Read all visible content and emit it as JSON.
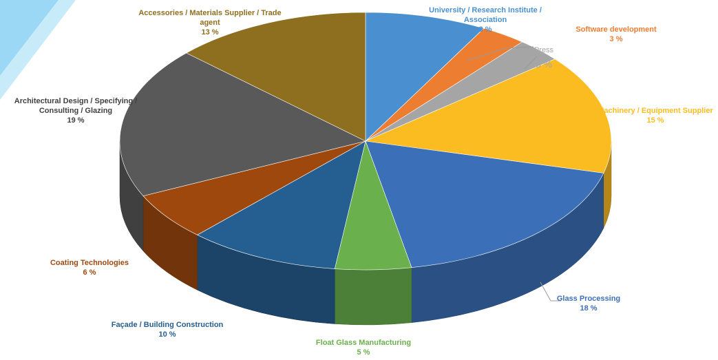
{
  "chart_data": {
    "type": "pie",
    "categories": [
      "University / Research Institute / Association",
      "Software development",
      "Press",
      "Machinery / Equipment Supplier",
      "Glass Processing",
      "Float Glass Manufacturing",
      "Façade / Building Construction",
      "Coating Technologies",
      "Architectural Design / Specifying / Consulting / Glazing",
      "Accessories / Materials Supplier / Trade agent"
    ],
    "values": [
      8,
      3,
      3,
      15,
      18,
      5,
      10,
      6,
      19,
      13
    ],
    "value_labels": [
      "8 %",
      "3 %",
      "3 %",
      "15 %",
      "18 %",
      "5 %",
      "10 %",
      "6 %",
      "19 %",
      "13 %"
    ],
    "colors": [
      "#4a90d0",
      "#ed7d31",
      "#a5a5a5",
      "#fbbc22",
      "#3b6fb8",
      "#6ab04c",
      "#255e91",
      "#9e480e",
      "#595959",
      "#8e6e1f"
    ]
  }
}
